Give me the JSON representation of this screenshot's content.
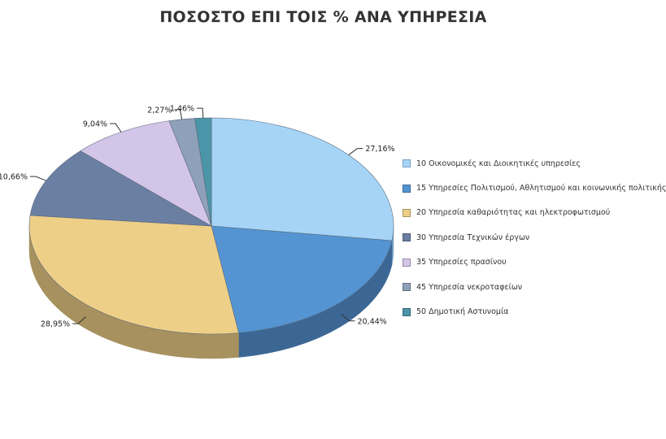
{
  "chart_data": {
    "type": "pie",
    "title": "ΠΟΣΟΣΤΟ ΕΠΙ ΤΟΙΣ % ΑΝΑ ΥΠΗΡΕΣΙΑ",
    "style": "3d",
    "legend_position": "right",
    "slices": [
      {
        "label": "10 Οικονομικές και Διοικητικές υπηρεσίες",
        "value": 27.16,
        "value_label": "27,16%",
        "color": "#a6d4f7",
        "side_color": "#7aa3c4"
      },
      {
        "label": "15 Υπηρεσίες Πολιτισμού, Αθλητισμού και κοινωνικής πολιτικής",
        "value": 20.44,
        "value_label": "20,44%",
        "color": "#5494d2",
        "side_color": "#3c6795"
      },
      {
        "label": "20 Υπηρεσία καθαριότητας και ηλεκτροφωτισμού",
        "value": 28.95,
        "value_label": "28,95%",
        "color": "#eecf88",
        "side_color": "#a7915f"
      },
      {
        "label": "30 Υπηρεσία Τεχνικών έργων",
        "value": 10.66,
        "value_label": "10,66%",
        "color": "#6a7fa2",
        "side_color": "#4a5972"
      },
      {
        "label": "35 Υπηρεσίες πρασίνου",
        "value": 9.04,
        "value_label": "9,04%",
        "color": "#d2c5e8",
        "side_color": "#9488a6"
      },
      {
        "label": "45 Υπηρεσία νεκροταφείων",
        "value": 2.27,
        "value_label": "2,27%",
        "color": "#8fa1ba",
        "side_color": "#647183"
      },
      {
        "label": "50 Δημοτική Αστυνομία",
        "value": 1.46,
        "value_label": "1,46%",
        "color": "#4b95a8",
        "side_color": "#346876"
      }
    ]
  }
}
